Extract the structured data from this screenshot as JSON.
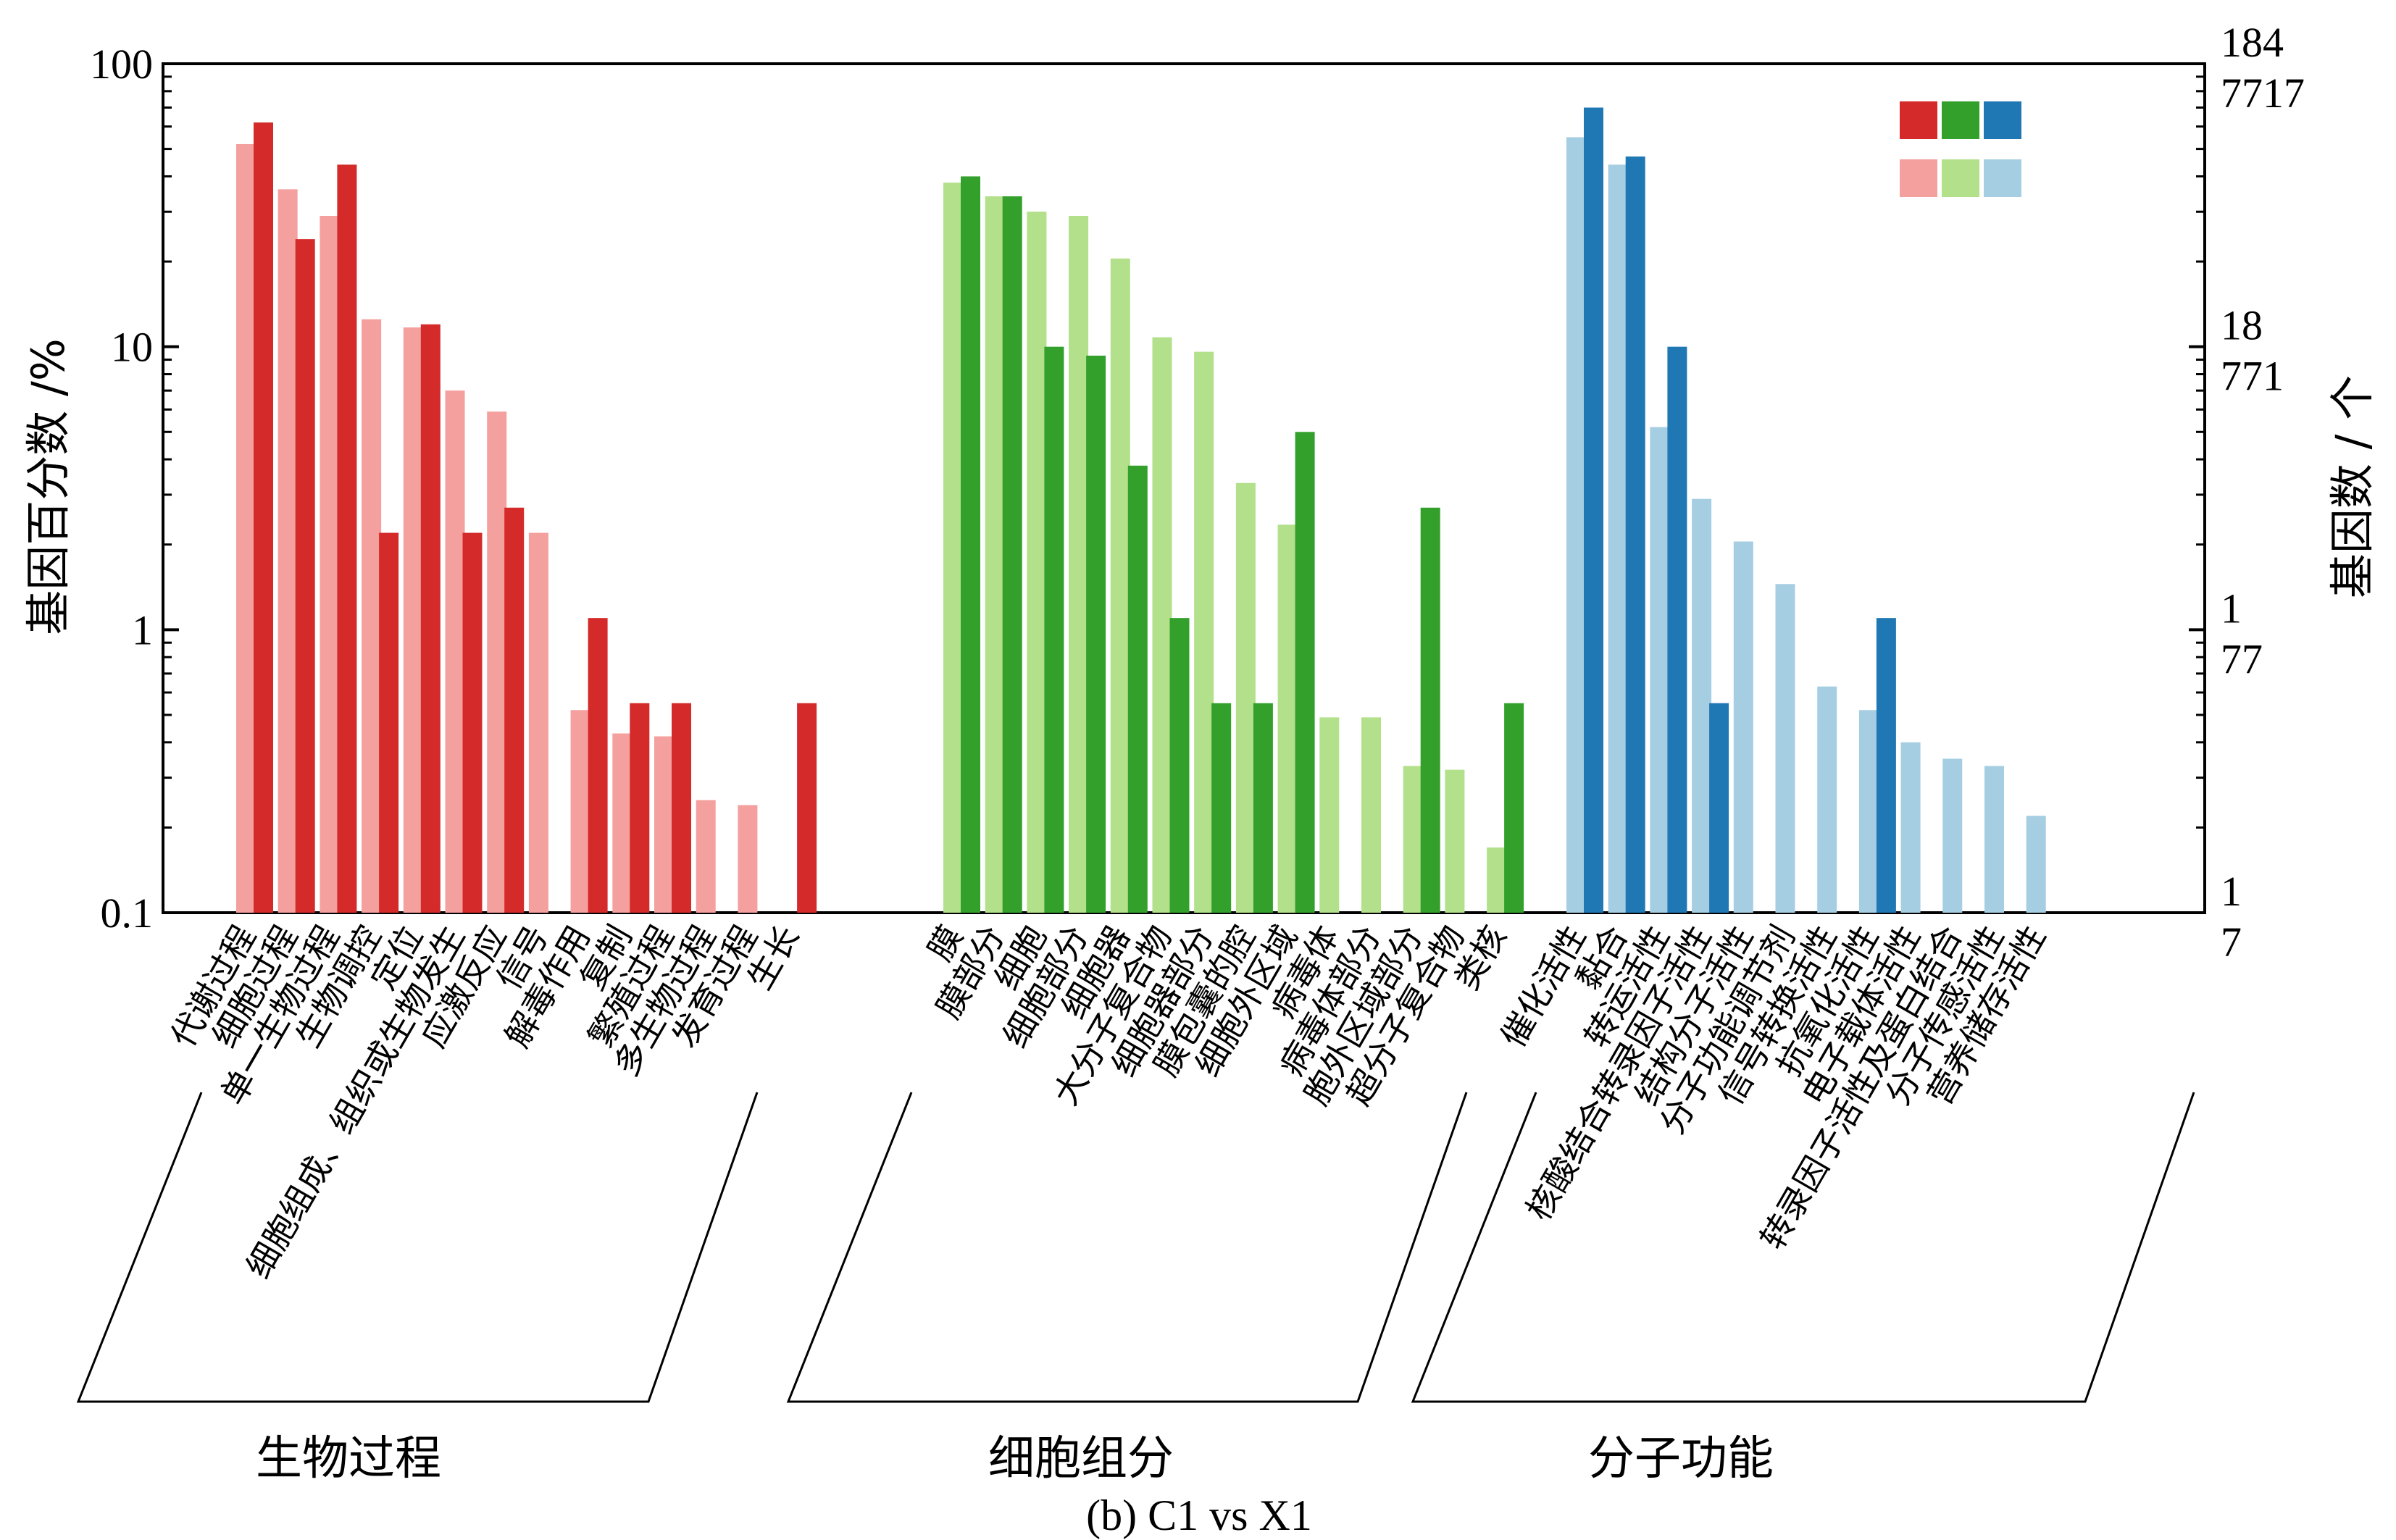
{
  "caption": "(b) C1 vs X1",
  "chart_data": {
    "type": "bar",
    "y_scale": "log",
    "ylim": [
      0.1,
      100
    ],
    "ylabel": "基因百分数 /%",
    "y2label": "基因数 / 个",
    "yticks": [
      "0.1",
      "1",
      "10",
      "100"
    ],
    "y2ticks": [
      {
        "value": 0.1,
        "lines": [
          "1",
          "7"
        ]
      },
      {
        "value": 1,
        "lines": [
          "1",
          "77"
        ]
      },
      {
        "value": 10,
        "lines": [
          "18",
          "771"
        ]
      },
      {
        "value": 100,
        "lines": [
          "184",
          "7717"
        ]
      }
    ],
    "colors": {
      "bp_light": "#f4a09e",
      "bp_dark": "#d42a2a",
      "cc_light": "#b2e08b",
      "cc_dark": "#33a02c",
      "mf_light": "#a6cee3",
      "mf_dark": "#1f78b4"
    },
    "legend": {
      "placement": "top-right"
    },
    "groups": [
      {
        "name": "生物过程",
        "light": "bp_light",
        "dark": "bp_dark",
        "categories": [
          "代谢过程",
          "细胞过程",
          "单一生物过程",
          "生物调控",
          "定位",
          "细胞组成、组织或生物发生",
          "应激反应",
          "信号",
          "解毒作用",
          "复制",
          "繁殖过程",
          "多生物过程",
          "发育过程",
          "生长"
        ],
        "light_values": [
          52,
          36,
          29,
          12.5,
          11.7,
          7,
          5.9,
          2.2,
          0.52,
          0.43,
          0.42,
          0.25,
          0.24,
          null
        ],
        "dark_values": [
          62,
          24,
          44,
          2.2,
          12,
          2.2,
          2.7,
          null,
          1.1,
          0.55,
          0.55,
          null,
          null,
          0.55
        ]
      },
      {
        "name": "细胞组分",
        "light": "cc_light",
        "dark": "cc_dark",
        "categories": [
          "膜",
          "膜部分",
          "细胞",
          "细胞部分",
          "细胞器",
          "大分子复合物",
          "细胞器部分",
          "膜包囊的腔",
          "细胞外区域",
          "病毒体",
          "病毒体部分",
          "胞外区域部分",
          "超分子复合物",
          "类核"
        ],
        "light_values": [
          38,
          34,
          30,
          29,
          20.5,
          10.8,
          9.6,
          3.3,
          2.35,
          0.49,
          0.49,
          0.33,
          0.32,
          0.17
        ],
        "dark_values": [
          40,
          34,
          10,
          9.3,
          3.8,
          1.1,
          0.55,
          0.55,
          5,
          null,
          null,
          2.7,
          null,
          0.55
        ]
      },
      {
        "name": "分子功能",
        "light": "mf_light",
        "dark": "mf_dark",
        "categories": [
          "催化活性",
          "黏合",
          "转运活性",
          "核酸结合转录因子活性",
          "结构分子活性",
          "分子功能调节剂",
          "信号转换活性",
          "抗氧化活性",
          "电子载体活性",
          "转录因子活性及蛋白结合",
          "分子传感活性",
          "营养储存活性"
        ],
        "light_values": [
          55,
          44,
          5.2,
          2.9,
          2.05,
          1.45,
          0.63,
          0.52,
          0.4,
          0.35,
          0.33,
          0.22
        ],
        "dark_values": [
          70,
          47,
          10,
          0.55,
          null,
          null,
          null,
          1.1,
          null,
          null,
          null,
          null
        ]
      }
    ]
  }
}
